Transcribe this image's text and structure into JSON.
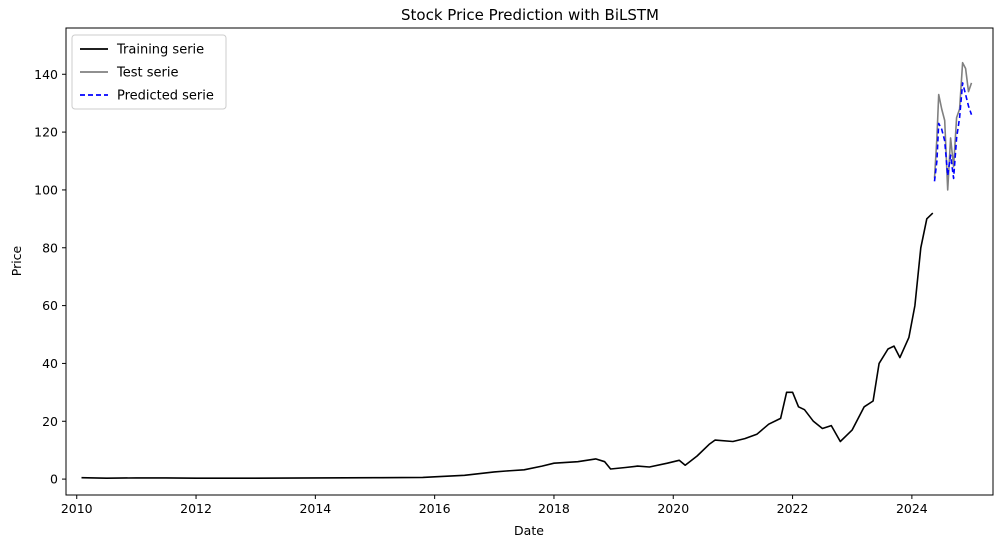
{
  "chart_data": {
    "type": "line",
    "title": "Stock Price Prediction with BiLSTM",
    "xlabel": "Date",
    "ylabel": "Price",
    "xlim": [
      2009.82,
      2025.36
    ],
    "ylim": [
      -5.5,
      156
    ],
    "x_ticks": [
      2010,
      2012,
      2014,
      2016,
      2018,
      2020,
      2022,
      2024
    ],
    "y_ticks": [
      0,
      20,
      40,
      60,
      80,
      100,
      120,
      140
    ],
    "grid": false,
    "legend_position": "top-left",
    "series": [
      {
        "name": "Training serie",
        "color": "#000000",
        "style": "solid",
        "points": [
          [
            2010.08,
            0.5
          ],
          [
            2010.5,
            0.3
          ],
          [
            2011.0,
            0.4
          ],
          [
            2011.5,
            0.4
          ],
          [
            2012.0,
            0.3
          ],
          [
            2013.0,
            0.3
          ],
          [
            2014.0,
            0.4
          ],
          [
            2015.0,
            0.5
          ],
          [
            2015.8,
            0.6
          ],
          [
            2016.0,
            0.8
          ],
          [
            2016.5,
            1.3
          ],
          [
            2017.0,
            2.5
          ],
          [
            2017.2,
            2.8
          ],
          [
            2017.5,
            3.2
          ],
          [
            2017.8,
            4.5
          ],
          [
            2018.0,
            5.5
          ],
          [
            2018.4,
            6.0
          ],
          [
            2018.7,
            7.0
          ],
          [
            2018.85,
            6.0
          ],
          [
            2018.95,
            3.5
          ],
          [
            2019.2,
            4.0
          ],
          [
            2019.4,
            4.5
          ],
          [
            2019.6,
            4.2
          ],
          [
            2019.9,
            5.5
          ],
          [
            2020.1,
            6.5
          ],
          [
            2020.2,
            4.8
          ],
          [
            2020.4,
            8.0
          ],
          [
            2020.6,
            12.0
          ],
          [
            2020.7,
            13.5
          ],
          [
            2021.0,
            13.0
          ],
          [
            2021.2,
            14.0
          ],
          [
            2021.4,
            15.5
          ],
          [
            2021.6,
            19.0
          ],
          [
            2021.8,
            21.0
          ],
          [
            2021.9,
            30.0
          ],
          [
            2022.0,
            30.0
          ],
          [
            2022.1,
            25.0
          ],
          [
            2022.2,
            24.0
          ],
          [
            2022.35,
            20.0
          ],
          [
            2022.5,
            17.5
          ],
          [
            2022.65,
            18.5
          ],
          [
            2022.8,
            13.0
          ],
          [
            2022.9,
            15.0
          ],
          [
            2023.0,
            17.0
          ],
          [
            2023.2,
            25.0
          ],
          [
            2023.35,
            27.0
          ],
          [
            2023.45,
            40.0
          ],
          [
            2023.6,
            45.0
          ],
          [
            2023.7,
            46.0
          ],
          [
            2023.8,
            42.0
          ],
          [
            2023.95,
            49.0
          ],
          [
            2024.05,
            60.0
          ],
          [
            2024.15,
            80.0
          ],
          [
            2024.25,
            90.0
          ],
          [
            2024.35,
            92.0
          ]
        ]
      },
      {
        "name": "Test serie",
        "color": "#808080",
        "style": "solid",
        "points": [
          [
            2024.38,
            104.0
          ],
          [
            2024.42,
            118.0
          ],
          [
            2024.45,
            133.0
          ],
          [
            2024.5,
            128.0
          ],
          [
            2024.55,
            124.0
          ],
          [
            2024.6,
            100.0
          ],
          [
            2024.65,
            118.0
          ],
          [
            2024.7,
            108.0
          ],
          [
            2024.75,
            125.0
          ],
          [
            2024.8,
            128.0
          ],
          [
            2024.85,
            144.0
          ],
          [
            2024.9,
            142.0
          ],
          [
            2024.95,
            134.0
          ],
          [
            2025.0,
            137.0
          ]
        ]
      },
      {
        "name": "Predicted serie",
        "color": "#0000ff",
        "style": "dashed",
        "points": [
          [
            2024.38,
            103.0
          ],
          [
            2024.42,
            110.0
          ],
          [
            2024.45,
            123.0
          ],
          [
            2024.5,
            121.0
          ],
          [
            2024.55,
            117.0
          ],
          [
            2024.6,
            105.0
          ],
          [
            2024.65,
            112.0
          ],
          [
            2024.7,
            104.0
          ],
          [
            2024.75,
            118.0
          ],
          [
            2024.8,
            125.0
          ],
          [
            2024.85,
            137.0
          ],
          [
            2024.9,
            133.0
          ],
          [
            2024.95,
            129.0
          ],
          [
            2025.0,
            126.0
          ]
        ]
      }
    ]
  }
}
